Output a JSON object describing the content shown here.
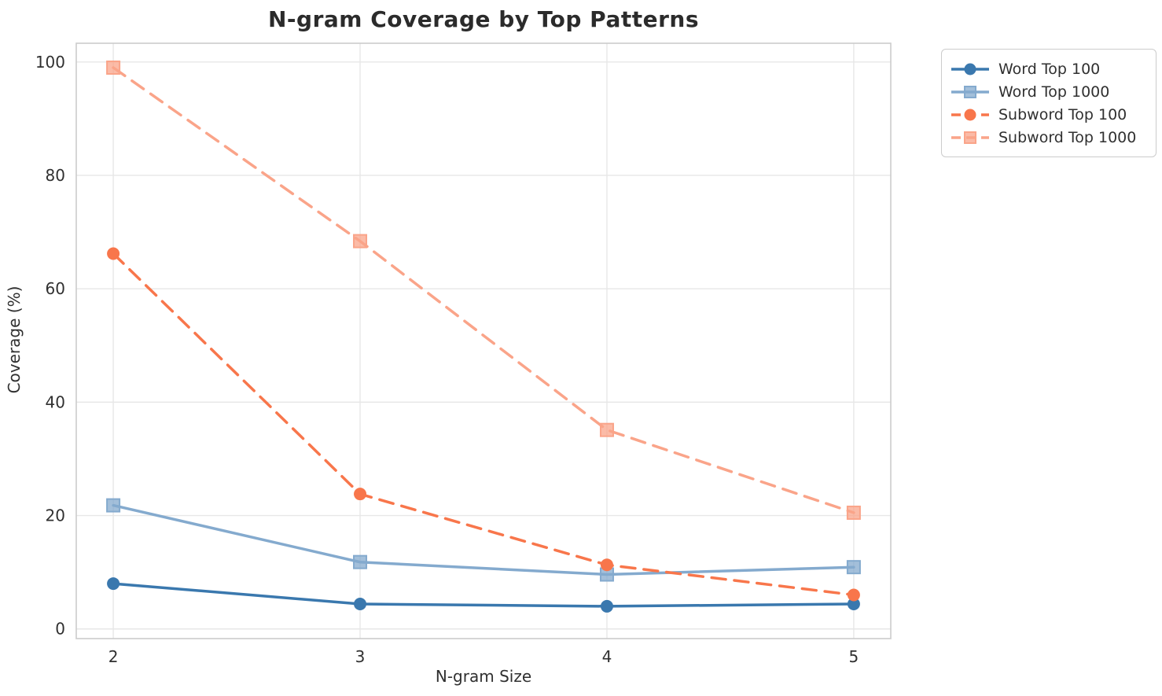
{
  "chart_data": {
    "type": "line",
    "title": "N-gram Coverage by Top Patterns",
    "xlabel": "N-gram Size",
    "ylabel": "Coverage (%)",
    "x": [
      2,
      3,
      4,
      5
    ],
    "xticks": [
      2,
      3,
      4,
      5
    ],
    "yticks": [
      0,
      20,
      40,
      60,
      80,
      100
    ],
    "xlim": [
      1.85,
      5.15
    ],
    "ylim": [
      -1.7,
      103.3
    ],
    "grid": true,
    "legend_position": "outside-top-right",
    "series": [
      {
        "name": "Word Top 100",
        "color": "#3A78AE",
        "line_style": "solid",
        "marker": "circle",
        "values": [
          8.0,
          4.4,
          4.0,
          4.4
        ]
      },
      {
        "name": "Word Top 1000",
        "color": "#84AACE",
        "line_style": "solid",
        "marker": "square",
        "values": [
          21.8,
          11.8,
          9.6,
          10.9
        ]
      },
      {
        "name": "Subword Top 100",
        "color": "#F8764B",
        "line_style": "dashed",
        "marker": "circle",
        "values": [
          66.2,
          23.8,
          11.3,
          6.0
        ]
      },
      {
        "name": "Subword Top 1000",
        "color": "#FAA489",
        "line_style": "dashed",
        "marker": "square",
        "values": [
          99.0,
          68.4,
          35.1,
          20.5
        ]
      }
    ],
    "colors": {
      "grid": "#E7E7E7",
      "frame": "#CCCCCC",
      "tick_text": "#303030",
      "title_text": "#2b2b2b"
    }
  }
}
